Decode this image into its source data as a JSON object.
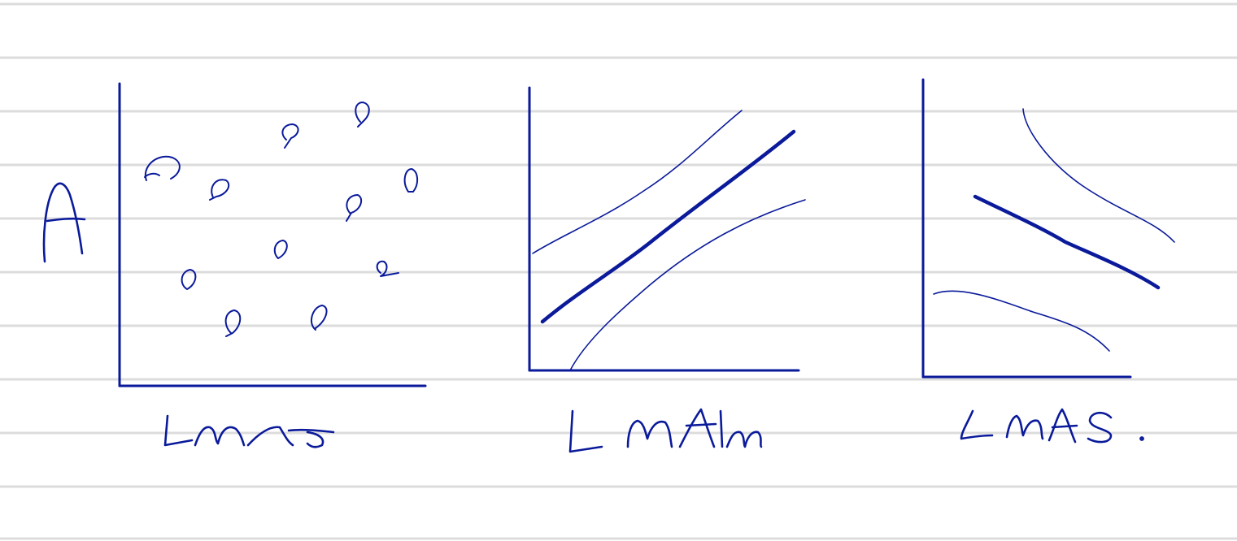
{
  "colors": {
    "ink": "#0a1a9a",
    "ruled_lines": "#dcdcdc",
    "paper": "#ffffff"
  },
  "y_axis_label": "A",
  "panels": [
    {
      "xlabel": "LMA",
      "type": "scatter",
      "points": 12
    },
    {
      "xlabel": "LMAm",
      "type": "line",
      "trend": "increasing",
      "central_line": "thick",
      "envelope_lines": 2
    },
    {
      "xlabel": "LMAS.",
      "type": "line",
      "trend": "decreasing",
      "central_line": "thick",
      "envelope_lines": 2
    }
  ]
}
